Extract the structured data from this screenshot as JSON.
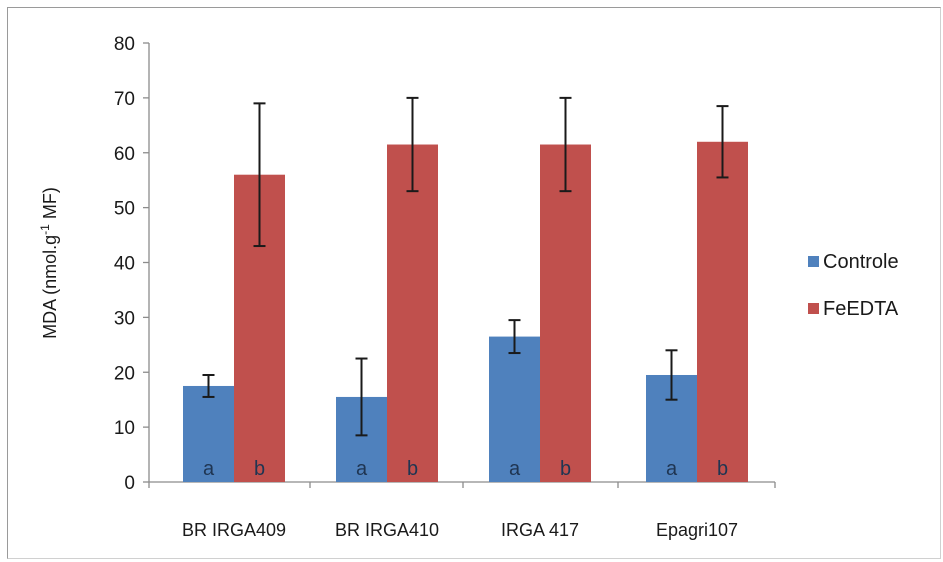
{
  "chart_data": {
    "type": "bar",
    "title": "",
    "ylabel_parts": {
      "pre": "MDA (nmol.g",
      "sup": "-1",
      "post": " MF)"
    },
    "ylim": [
      0,
      80
    ],
    "yticks": [
      "0",
      "10",
      "20",
      "30",
      "40",
      "50",
      "60",
      "70",
      "80"
    ],
    "ytick_values": [
      0,
      10,
      20,
      30,
      40,
      50,
      60,
      70,
      80
    ],
    "categories": [
      "BR IRGA409",
      "BR IRGA410",
      "IRGA 417",
      "Epagri107"
    ],
    "series": [
      {
        "name": "Controle",
        "color": "#4f81bd",
        "values": [
          17.5,
          15.5,
          26.5,
          19.5
        ],
        "errors": [
          2.0,
          7.0,
          3.0,
          4.5
        ],
        "letters": [
          "a",
          "a",
          "a",
          "a"
        ]
      },
      {
        "name": "FeEDTA",
        "color": "#c0504d",
        "values": [
          56,
          61.5,
          61.5,
          62
        ],
        "errors": [
          13,
          8.5,
          8.5,
          6.5
        ],
        "letters": [
          "b",
          "b",
          "b",
          "b"
        ]
      }
    ],
    "grid": false,
    "legend": "right"
  }
}
